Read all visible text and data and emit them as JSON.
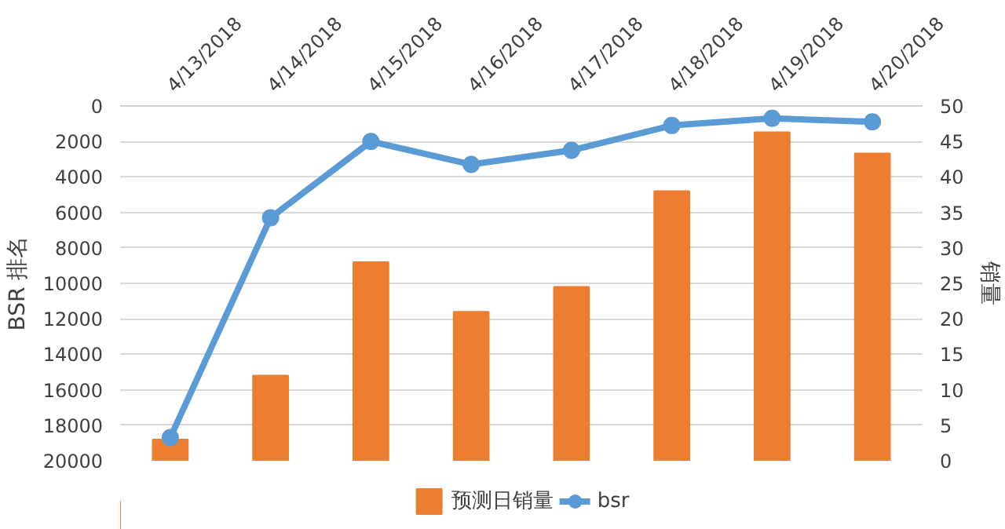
{
  "chart_data": {
    "type": "bar",
    "categories": [
      "4/13/2018",
      "4/14/2018",
      "4/15/2018",
      "4/16/2018",
      "4/17/2018",
      "4/18/2018",
      "4/19/2018",
      "4/20/2018"
    ],
    "ylabel": "BSR 排名",
    "y2label": "销量",
    "ylim": [
      20000,
      0
    ],
    "yticks": [
      0,
      2000,
      4000,
      6000,
      8000,
      10000,
      12000,
      14000,
      16000,
      18000,
      20000
    ],
    "y2lim": [
      0,
      50
    ],
    "y2ticks": [
      0,
      5,
      10,
      15,
      20,
      25,
      30,
      35,
      40,
      45,
      50
    ],
    "grid": "y",
    "legend": "bottom",
    "marker": "circle",
    "series": [
      {
        "name": "预测日销量",
        "axis": "y2",
        "color": "#ed7d31",
        "values": [
          3,
          12,
          28,
          21,
          24.5,
          38,
          46.3,
          43.3
        ]
      },
      {
        "name": "bsr",
        "type": "line",
        "color": "#5b9bd5",
        "values": [
          18700,
          6300,
          2000,
          3300,
          2500,
          1100,
          700,
          900
        ]
      }
    ]
  }
}
